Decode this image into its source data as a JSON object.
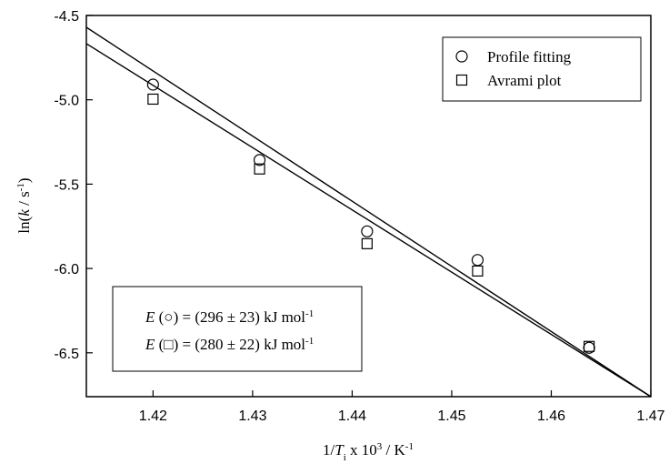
{
  "chart_data": {
    "type": "scatter",
    "y_label_parts": [
      {
        "text": "ln("
      },
      {
        "text": "k",
        "italic": true
      },
      {
        "text": " / s"
      },
      {
        "text": "-1",
        "sup": true
      },
      {
        "text": ")"
      }
    ],
    "x_label_parts": [
      {
        "text": "1/"
      },
      {
        "text": "T",
        "italic": true
      },
      {
        "text": "i",
        "sub": true
      },
      {
        "text": " x 10"
      },
      {
        "text": "3",
        "sup": true
      },
      {
        "text": " / K"
      },
      {
        "text": "-1",
        "sup": true
      }
    ],
    "xlim": [
      1.4133,
      1.47
    ],
    "ylim": [
      -6.76,
      -4.5
    ],
    "xticks": [
      1.42,
      1.43,
      1.44,
      1.45,
      1.46,
      1.47
    ],
    "yticks": [
      -4.5,
      {
        "value": -5,
        "label": "-5.0"
      },
      -5.5,
      {
        "value": -6,
        "label": "-6.0"
      },
      -6.5
    ],
    "series": [
      {
        "name": "Profile fitting",
        "marker": "circle",
        "color": "#000000",
        "x": [
          1.42,
          1.4307,
          1.4415,
          1.4526,
          1.4638
        ],
        "values": [
          -4.91,
          -5.357,
          -5.78,
          -5.95,
          -6.47
        ]
      },
      {
        "name": "Avrami plot",
        "marker": "square",
        "color": "#000000",
        "x": [
          1.42,
          1.4307,
          1.4415,
          1.4526,
          1.4638
        ],
        "values": [
          -4.996,
          -5.41,
          -5.853,
          -6.015,
          -6.462
        ]
      }
    ],
    "fit_lines": [
      {
        "x": [
          1.4133,
          1.47
        ],
        "y": [
          -4.57,
          -6.76
        ]
      },
      {
        "x": [
          1.4133,
          1.47
        ],
        "y": [
          -4.667,
          -6.76
        ]
      }
    ],
    "annotations": [
      {
        "variable": "E",
        "text": " (○) = (296 ± 23) kJ mol",
        "superscript": "-1"
      },
      {
        "variable": "E",
        "text": " (□) = (280 ± 22) kJ mol",
        "superscript": "-1"
      }
    ]
  }
}
